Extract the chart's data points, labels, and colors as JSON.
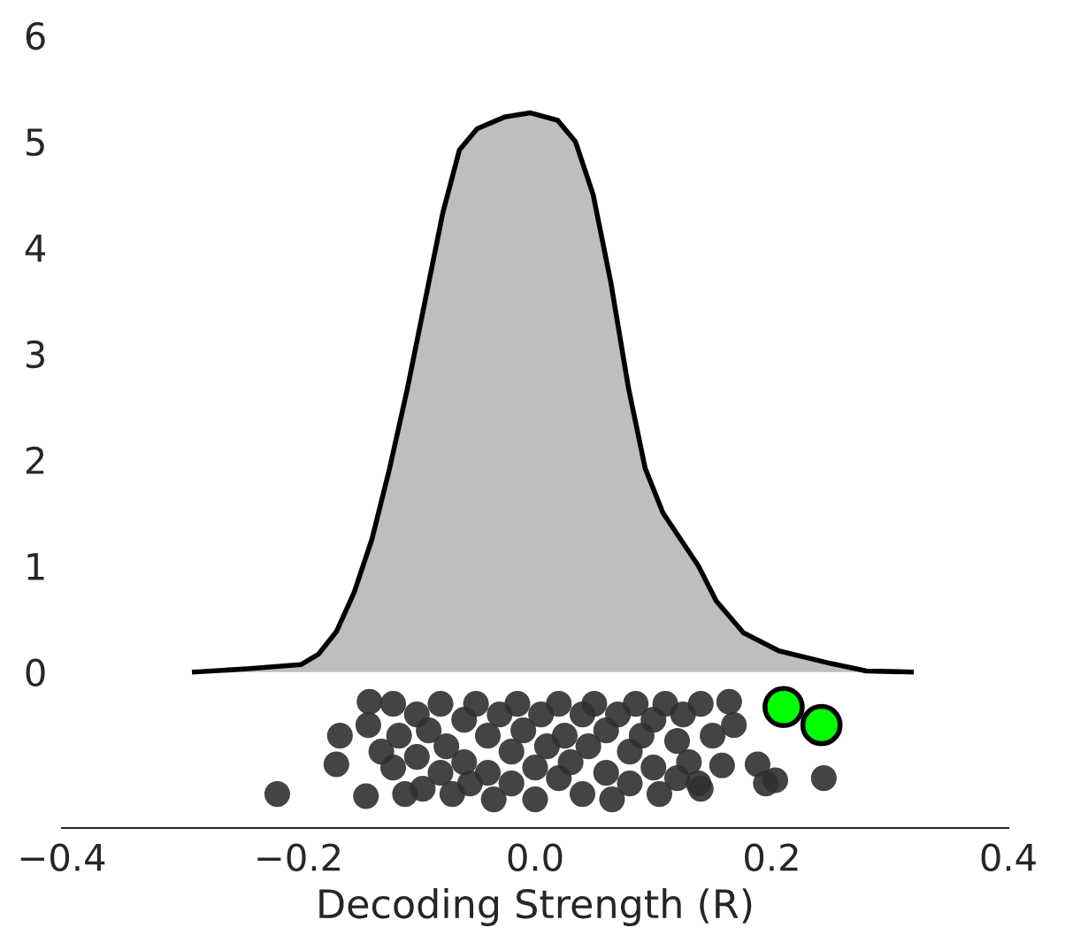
{
  "chart_data": {
    "type": "area",
    "xlabel": "Decoding Strength (R)",
    "xlim": [
      -0.4,
      0.4
    ],
    "xticks": [
      {
        "value": -0.4,
        "label": "−0.4"
      },
      {
        "value": -0.2,
        "label": "−0.2"
      },
      {
        "value": 0.0,
        "label": "0.0"
      },
      {
        "value": 0.2,
        "label": "0.2"
      },
      {
        "value": 0.4,
        "label": "0.4"
      }
    ],
    "ylim": [
      -1.47,
      6
    ],
    "yticks": [
      0,
      1,
      2,
      3,
      4,
      5,
      6
    ],
    "grid": false,
    "legend": false,
    "series": [
      {
        "color": "#bebebe",
        "x": [
          -0.288,
          -0.243,
          -0.198,
          -0.183,
          -0.168,
          -0.153,
          -0.138,
          -0.123,
          -0.108,
          -0.093,
          -0.078,
          -0.064,
          -0.049,
          -0.026,
          -0.004,
          0.019,
          0.034,
          0.049,
          0.064,
          0.079,
          0.093,
          0.108,
          0.123,
          0.138,
          0.153,
          0.176,
          0.206,
          0.25,
          0.28,
          0.318
        ],
        "values": [
          0.0,
          0.03,
          0.07,
          0.17,
          0.38,
          0.75,
          1.25,
          1.92,
          2.67,
          3.5,
          4.33,
          4.92,
          5.12,
          5.23,
          5.27,
          5.2,
          5.0,
          4.5,
          3.67,
          2.67,
          1.92,
          1.5,
          1.25,
          1.0,
          0.67,
          0.37,
          0.2,
          0.08,
          0.01,
          0.0
        ]
      },
      {
        "type": "scatter",
        "color": "#303030",
        "x": [
          -0.218,
          -0.143,
          -0.168,
          -0.165,
          -0.14,
          -0.141,
          0.164,
          0.168,
          0.188,
          0.195,
          0.203,
          0.244,
          0.158,
          0.138,
          -0.12,
          -0.12,
          -0.115,
          -0.11,
          -0.1,
          -0.1,
          -0.095,
          -0.09,
          -0.08,
          -0.08,
          -0.075,
          -0.07,
          -0.06,
          -0.06,
          -0.055,
          -0.05,
          -0.04,
          -0.04,
          -0.035,
          -0.03,
          -0.02,
          -0.02,
          -0.015,
          -0.01,
          0.0,
          0.0,
          0.005,
          0.01,
          0.02,
          0.02,
          0.025,
          0.03,
          0.04,
          0.04,
          0.045,
          0.05,
          0.06,
          0.06,
          0.065,
          0.07,
          0.08,
          0.08,
          0.085,
          0.09,
          0.1,
          0.1,
          0.105,
          0.11,
          0.12,
          0.12,
          0.125,
          0.13,
          0.14,
          0.14,
          -0.13,
          0.15
        ],
        "values": [
          -1.15,
          -1.17,
          -0.87,
          -0.6,
          -0.28,
          -0.5,
          -0.28,
          -0.5,
          -0.87,
          -1.05,
          -1.02,
          -1.0,
          -0.88,
          -1.05,
          -0.3,
          -0.9,
          -0.6,
          -1.15,
          -0.4,
          -0.8,
          -1.1,
          -0.55,
          -0.3,
          -0.95,
          -0.7,
          -1.15,
          -0.45,
          -0.85,
          -1.05,
          -0.3,
          -0.6,
          -0.95,
          -1.2,
          -0.4,
          -0.75,
          -1.05,
          -0.3,
          -0.55,
          -0.9,
          -1.2,
          -0.4,
          -0.7,
          -0.3,
          -1.0,
          -0.6,
          -0.85,
          -0.4,
          -1.15,
          -0.7,
          -0.3,
          -0.55,
          -0.95,
          -1.2,
          -0.4,
          -0.75,
          -1.05,
          -0.3,
          -0.6,
          -0.45,
          -0.9,
          -1.15,
          -0.3,
          -0.65,
          -1.0,
          -0.4,
          -0.85,
          -0.3,
          -1.1,
          -0.75,
          -0.6
        ]
      },
      {
        "type": "scatter",
        "color": "#00ff00",
        "x": [
          0.21,
          0.242
        ],
        "values": [
          -0.33,
          -0.5
        ]
      }
    ]
  }
}
